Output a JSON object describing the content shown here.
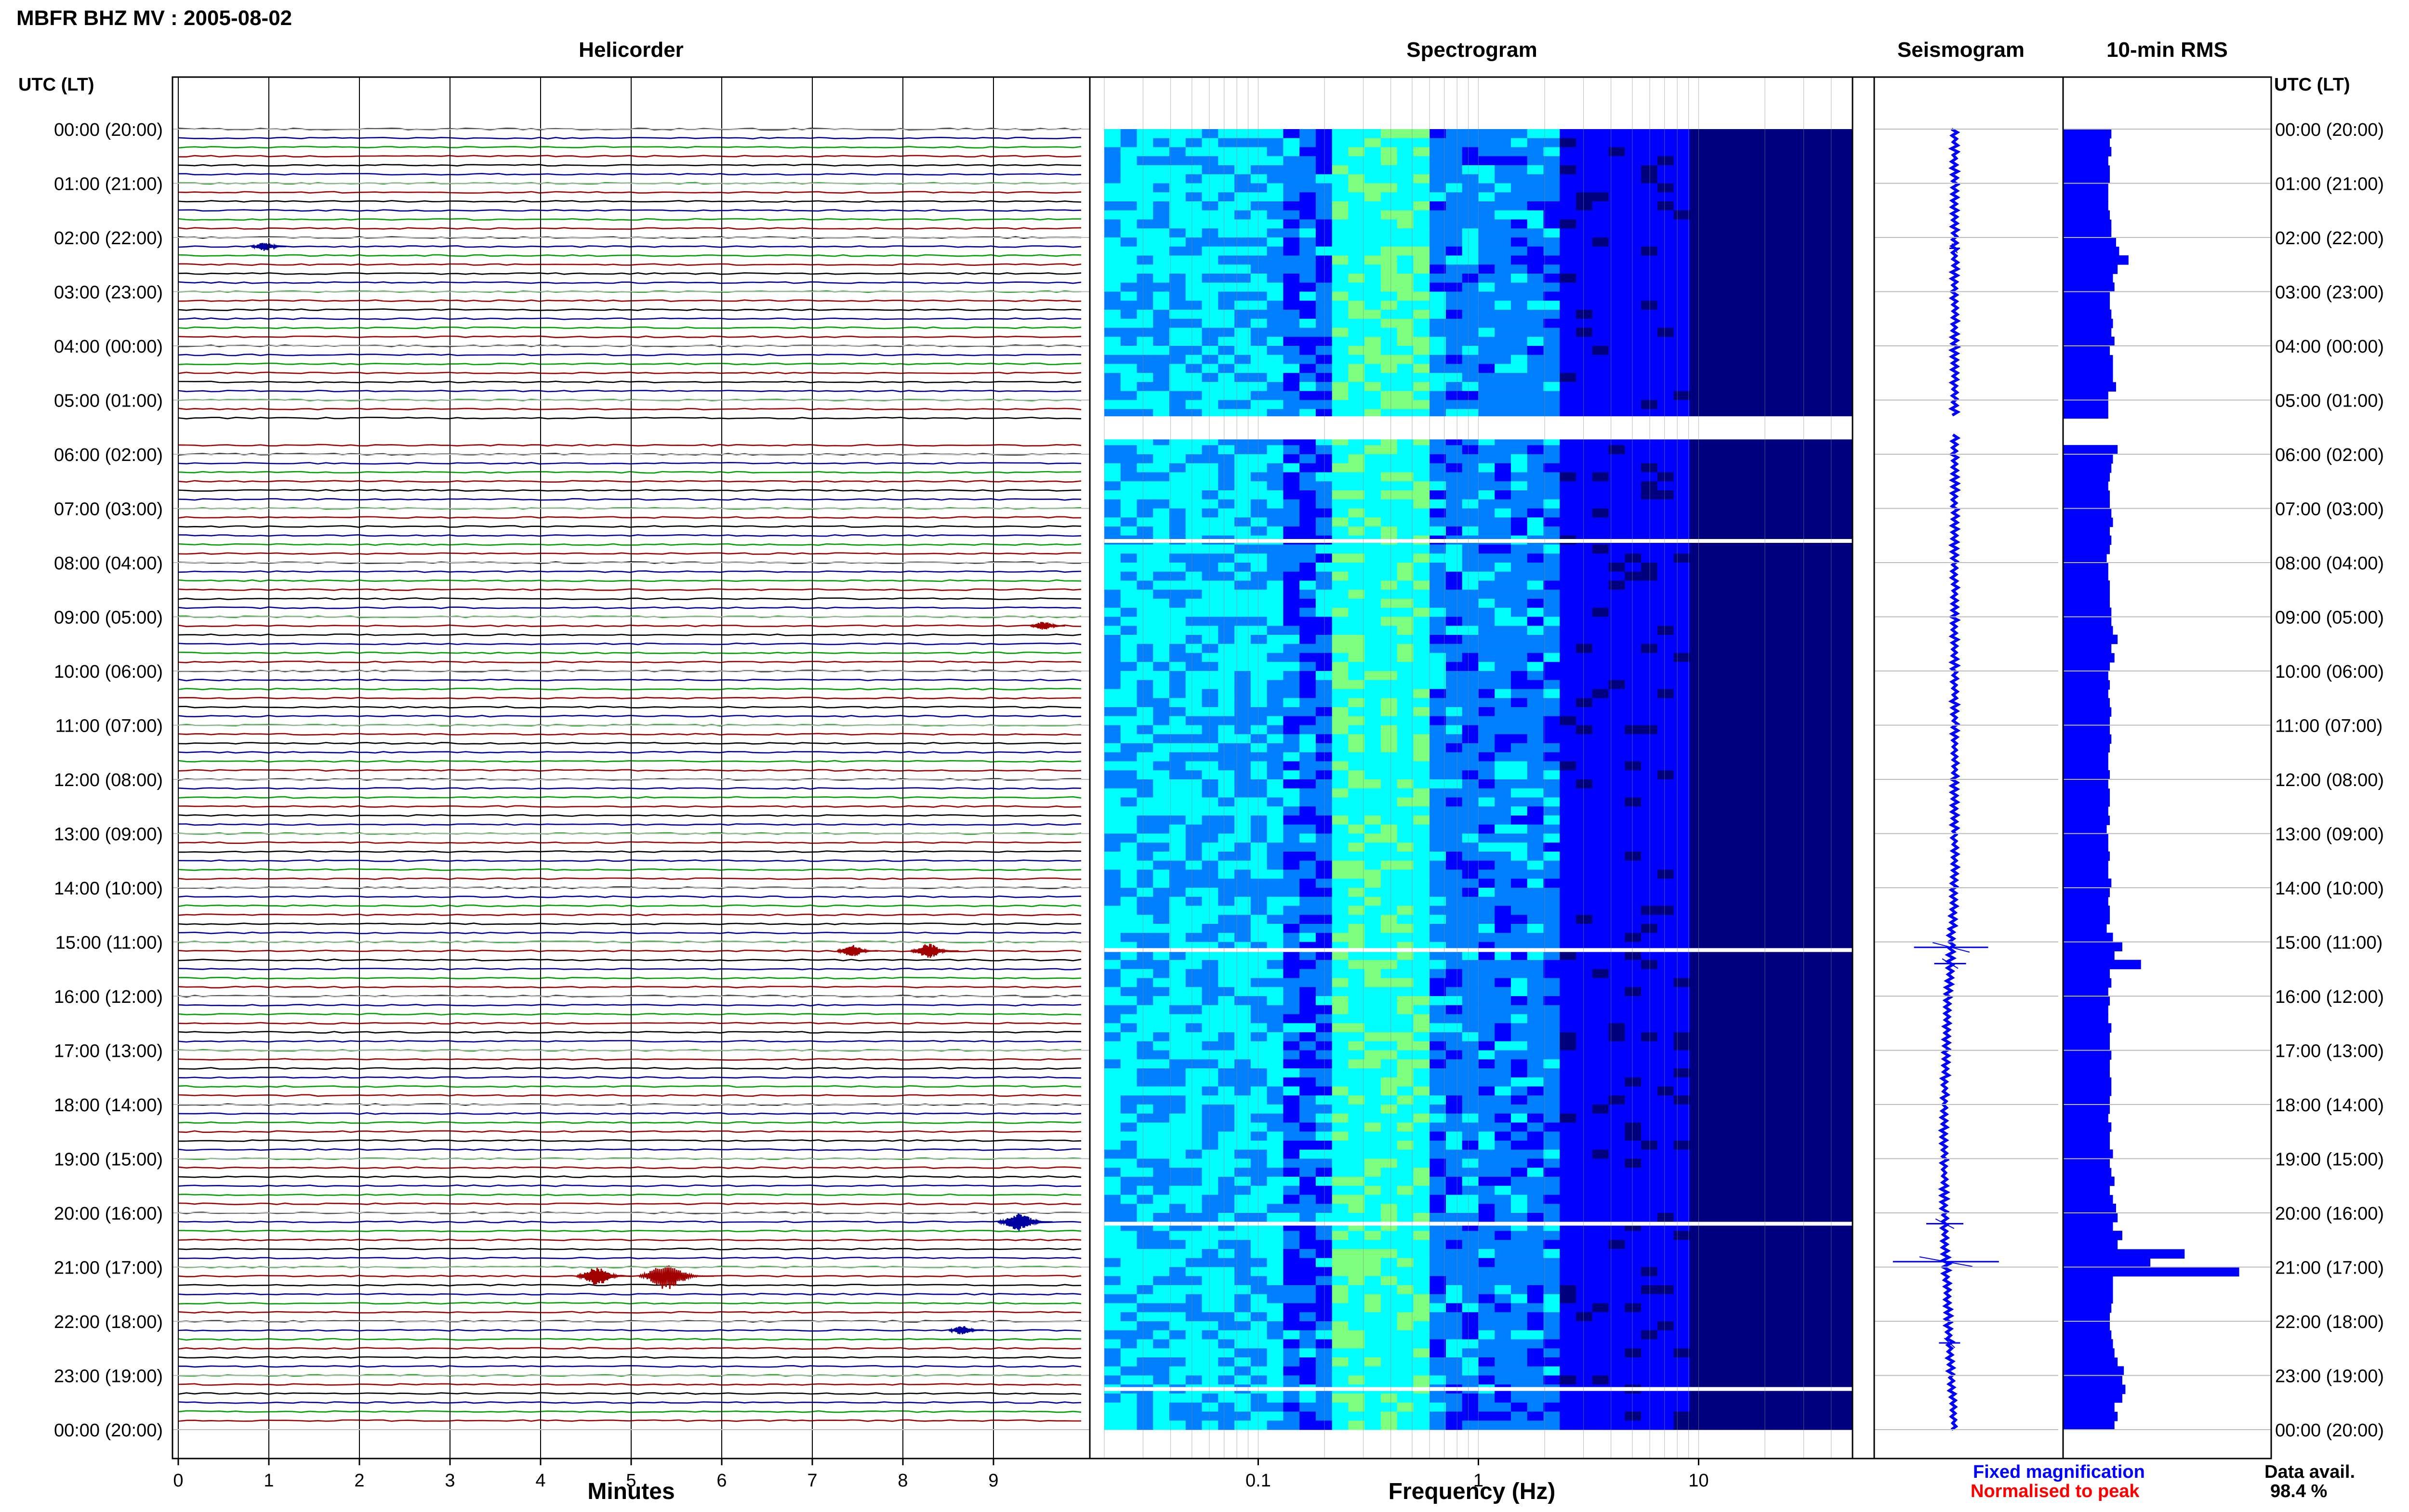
{
  "page_title": "MBFR BHZ MV : 2005-08-02",
  "time_axis_label": "UTC (LT)",
  "time_labels": [
    "00:00 (20:00)",
    "01:00 (21:00)",
    "02:00 (22:00)",
    "03:00 (23:00)",
    "04:00 (00:00)",
    "05:00 (01:00)",
    "06:00 (02:00)",
    "07:00 (03:00)",
    "08:00 (04:00)",
    "09:00 (05:00)",
    "10:00 (06:00)",
    "11:00 (07:00)",
    "12:00 (08:00)",
    "13:00 (09:00)",
    "14:00 (10:00)",
    "15:00 (11:00)",
    "16:00 (12:00)",
    "17:00 (13:00)",
    "18:00 (14:00)",
    "19:00 (15:00)",
    "20:00 (16:00)",
    "21:00 (17:00)",
    "22:00 (18:00)",
    "23:00 (19:00)",
    "00:00 (20:00)"
  ],
  "legend": {
    "fixed": "Fixed magnification",
    "normalised": "Normalised to peak",
    "fixed_color": "#0000ff",
    "normalised_color": "#ff0000"
  },
  "availability": {
    "label": "Data avail.",
    "value": "98.4 %"
  },
  "chart_data": [
    {
      "type": "line",
      "title": "Helicorder",
      "xlabel": "Minutes",
      "xlim": [
        0,
        10
      ],
      "xticks": [
        0,
        1,
        2,
        3,
        4,
        5,
        6,
        7,
        8,
        9
      ],
      "rows_per_hour": 6,
      "trace_colors": [
        "#000000",
        "#0000a0",
        "#00a000",
        "#a00000"
      ],
      "gap_rows": [
        33,
        34
      ],
      "events": [
        {
          "hour": 2,
          "minute": 1.0,
          "amp": 3
        },
        {
          "hour": 15,
          "minute": 7.5,
          "amp": 4
        },
        {
          "hour": 15,
          "minute": 8.35,
          "amp": 5
        },
        {
          "hour": 20,
          "minute": 9.4,
          "amp": 4
        },
        {
          "hour": 20,
          "minute": 9.35,
          "amp": 6
        },
        {
          "hour": 21,
          "minute": 4.7,
          "amp": 6
        },
        {
          "hour": 21,
          "minute": 5.5,
          "amp": 9
        },
        {
          "hour": 22,
          "minute": 8.7,
          "amp": 3
        },
        {
          "hour": 9,
          "minute": 9.6,
          "amp": 3
        }
      ]
    },
    {
      "type": "heatmap",
      "title": "Spectrogram",
      "xlabel": "Frequency (Hz)",
      "xscale": "log",
      "xlim": [
        0.02,
        50
      ],
      "xticks": [
        0.1,
        1,
        10
      ],
      "xtick_labels": [
        "0.1",
        "1",
        "10"
      ],
      "colormap": [
        "#00007f",
        "#0000ff",
        "#007fff",
        "#00ffff",
        "#7fff7f"
      ],
      "gap_hours": [
        5.3,
        5.6,
        7.6,
        15.15,
        20.2,
        23.25
      ]
    },
    {
      "type": "line",
      "title": "Seismogram",
      "events": [
        {
          "hour": 2.2,
          "amp": 10
        },
        {
          "hour": 15.1,
          "amp": 70
        },
        {
          "hour": 15.4,
          "amp": 30
        },
        {
          "hour": 20.2,
          "amp": 35
        },
        {
          "hour": 20.9,
          "amp": 100
        },
        {
          "hour": 22.4,
          "amp": 20
        }
      ]
    },
    {
      "type": "bar",
      "title": "10-min RMS",
      "orientation": "horizontal",
      "x_hours": [
        0,
        0.17,
        0.33,
        0.5,
        0.67,
        0.83,
        1,
        1.17,
        1.33,
        1.5,
        1.67,
        1.83,
        2,
        2.17,
        2.33,
        2.5,
        2.67,
        2.83,
        3,
        3.17,
        3.33,
        3.5,
        3.67,
        3.83,
        4,
        4.17,
        4.33,
        4.5,
        4.67,
        4.83,
        5,
        5.17,
        5.33,
        5.5,
        5.67,
        5.83,
        6,
        6.17,
        6.33,
        6.5,
        6.67,
        6.83,
        7,
        7.17,
        7.33,
        7.5,
        7.67,
        7.83,
        8,
        8.17,
        8.33,
        8.5,
        8.67,
        8.83,
        9,
        9.17,
        9.33,
        9.5,
        9.67,
        9.83,
        10,
        10.17,
        10.33,
        10.5,
        10.67,
        10.83,
        11,
        11.17,
        11.33,
        11.5,
        11.67,
        11.83,
        12,
        12.17,
        12.33,
        12.5,
        12.67,
        12.83,
        13,
        13.17,
        13.33,
        13.5,
        13.67,
        13.83,
        14,
        14.17,
        14.33,
        14.5,
        14.67,
        14.83,
        15,
        15.17,
        15.33,
        15.5,
        15.67,
        15.83,
        16,
        16.17,
        16.33,
        16.5,
        16.67,
        16.83,
        17,
        17.17,
        17.33,
        17.5,
        17.67,
        17.83,
        18,
        18.17,
        18.33,
        18.5,
        18.67,
        18.83,
        19,
        19.17,
        19.33,
        19.5,
        19.67,
        19.83,
        20,
        20.17,
        20.33,
        20.5,
        20.67,
        20.83,
        21,
        21.17,
        21.33,
        21.5,
        21.67,
        21.83,
        22,
        22.17,
        22.33,
        22.5,
        22.67,
        22.83,
        23,
        23.17,
        23.33,
        23.5,
        23.67,
        23.83
      ],
      "values": [
        62,
        60,
        62,
        58,
        60,
        60,
        58,
        58,
        58,
        60,
        62,
        62,
        68,
        72,
        84,
        70,
        64,
        66,
        60,
        60,
        62,
        64,
        62,
        66,
        60,
        64,
        64,
        64,
        68,
        58,
        58,
        58,
        0,
        0,
        0,
        70,
        64,
        62,
        60,
        58,
        60,
        60,
        62,
        64,
        60,
        62,
        60,
        56,
        58,
        58,
        60,
        60,
        60,
        62,
        62,
        64,
        70,
        62,
        66,
        60,
        58,
        60,
        58,
        60,
        62,
        60,
        60,
        62,
        60,
        58,
        58,
        60,
        58,
        60,
        60,
        58,
        60,
        56,
        58,
        58,
        60,
        58,
        58,
        62,
        60,
        58,
        60,
        60,
        56,
        64,
        76,
        66,
        100,
        60,
        62,
        58,
        60,
        58,
        58,
        62,
        60,
        60,
        62,
        60,
        60,
        62,
        62,
        60,
        60,
        58,
        62,
        60,
        60,
        64,
        60,
        62,
        66,
        60,
        64,
        68,
        70,
        64,
        76,
        70,
        156,
        112,
        226,
        64,
        64,
        64,
        62,
        60,
        60,
        62,
        64,
        66,
        70,
        78,
        76,
        80,
        76,
        66,
        70,
        66
      ]
    }
  ]
}
